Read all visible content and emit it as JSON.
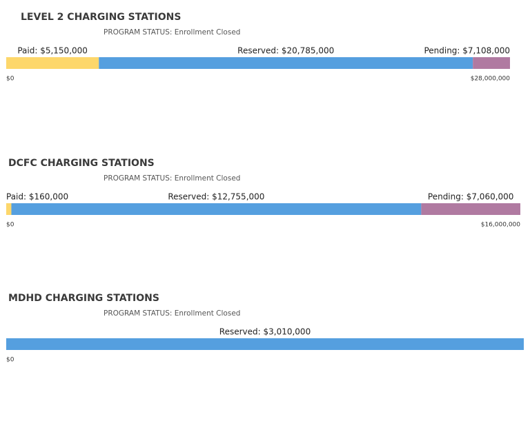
{
  "chart_data": [
    {
      "type": "bar",
      "stacked": true,
      "title": "LEVEL 2 CHARGING STATIONS",
      "subtitle": "PROGRAM STATUS: Enrollment Closed",
      "series": [
        {
          "color": "#fdd76b",
          "values": [
            5150000
          ],
          "value_labels": [
            "Paid: $5,150,000"
          ]
        },
        {
          "color": "#559fdf",
          "values": [
            20785000
          ],
          "value_labels": [
            "Reserved: $20,785,000"
          ]
        },
        {
          "color": "#b07aa1",
          "values": [
            7108000
          ],
          "value_labels": [
            "Pending: $7,108,000"
          ]
        }
      ],
      "xlim": [
        0,
        28000000
      ],
      "xticks": [
        {
          "value": 0,
          "label": "$0"
        },
        {
          "value": 28000000,
          "label": "$28,000,000"
        }
      ]
    },
    {
      "type": "bar",
      "stacked": true,
      "title": "DCFC CHARGING STATIONS",
      "subtitle": "PROGRAM STATUS: Enrollment Closed",
      "series": [
        {
          "color": "#fdd76b",
          "values": [
            160000
          ],
          "value_labels": [
            "Paid: $160,000"
          ]
        },
        {
          "color": "#559fdf",
          "values": [
            12755000
          ],
          "value_labels": [
            "Reserved: $12,755,000"
          ]
        },
        {
          "color": "#b07aa1",
          "values": [
            7060000
          ],
          "value_labels": [
            "Pending: $7,060,000"
          ]
        }
      ],
      "xlim": [
        0,
        16000000
      ],
      "xticks": [
        {
          "value": 0,
          "label": "$0"
        },
        {
          "value": 16000000,
          "label": "$16,000,000"
        }
      ]
    },
    {
      "type": "bar",
      "stacked": true,
      "title": "MDHD CHARGING STATIONS",
      "subtitle": "PROGRAM STATUS: Enrollment Closed",
      "series": [
        {
          "color": "#559fdf",
          "values": [
            3010000
          ],
          "value_labels": [
            "Reserved: $3,010,000"
          ]
        }
      ],
      "xlim": [
        0,
        3010000
      ],
      "xticks": [
        {
          "value": 0,
          "label": "$0"
        }
      ]
    }
  ]
}
